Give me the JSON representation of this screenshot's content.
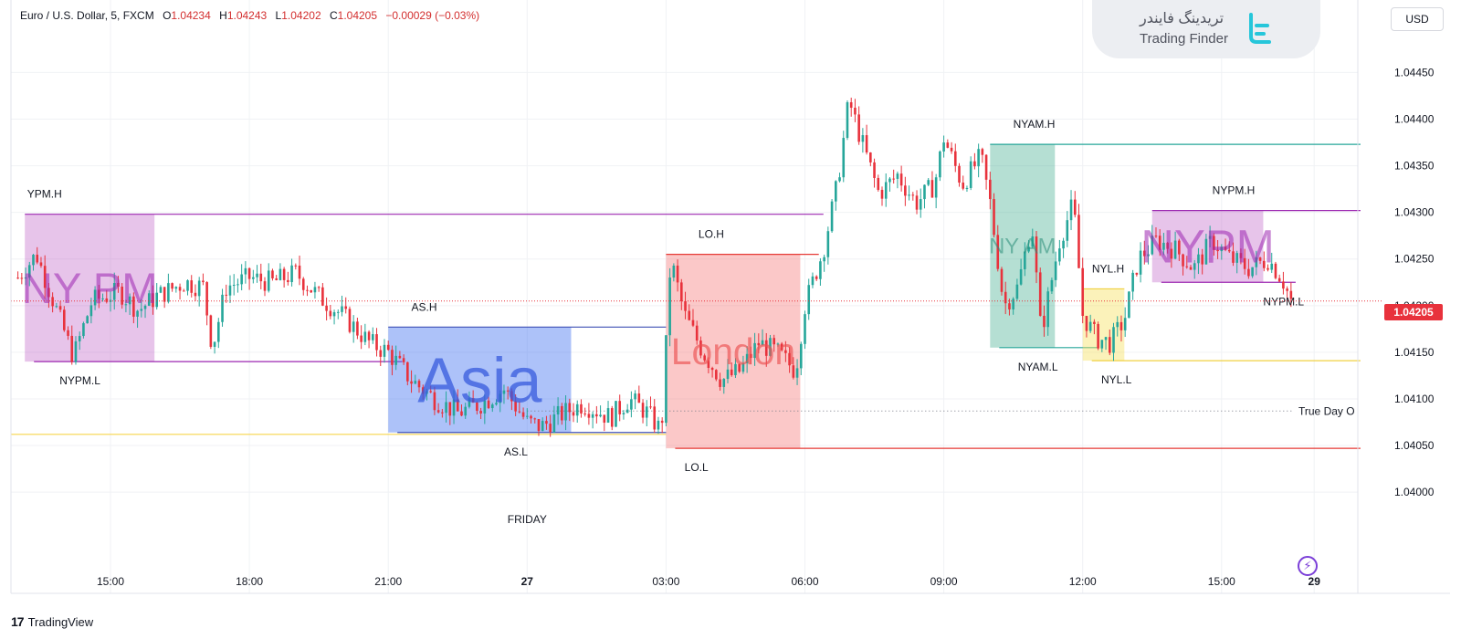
{
  "legend": {
    "symbol": "Euro / U.S. Dollar, 5, FXCM",
    "open_label": "O",
    "open": "1.04234",
    "high_label": "H",
    "high": "1.04243",
    "low_label": "L",
    "low": "1.04202",
    "close_label": "C",
    "close": "1.04205",
    "change": "−0.00029 (−0.03%)"
  },
  "currency": "USD",
  "brand": {
    "persian": "تریدینگ فایندر",
    "english": "Trading Finder"
  },
  "footer": {
    "logo_mark": "17",
    "logo_text": "TradingView"
  },
  "last_price": "1.04205",
  "colors": {
    "up": "#26a69a",
    "down": "#e8323c",
    "grid": "#f0f2f5",
    "axis_text": "#131722"
  },
  "icons": [
    "lightning-icon",
    "tradingview-logo-icon",
    "trading-finder-logo-icon"
  ],
  "chart_data": {
    "type": "candlestick",
    "ylim": [
      1.0396,
      1.0447
    ],
    "y_ticks": [
      "1.04450",
      "1.04400",
      "1.04350",
      "1.04300",
      "1.04250",
      "1.04200",
      "1.04150",
      "1.04100",
      "1.04050",
      "1.04000"
    ],
    "x_ticks": [
      {
        "label": "15:00",
        "t": 15.0,
        "bold": false
      },
      {
        "label": "18:00",
        "t": 18.0,
        "bold": false
      },
      {
        "label": "21:00",
        "t": 21.0,
        "bold": false
      },
      {
        "label": "27",
        "t": 24.0,
        "bold": true
      },
      {
        "label": "03:00",
        "t": 27.0,
        "bold": false
      },
      {
        "label": "06:00",
        "t": 30.0,
        "bold": false
      },
      {
        "label": "09:00",
        "t": 33.0,
        "bold": false
      },
      {
        "label": "12:00",
        "t": 36.0,
        "bold": false
      },
      {
        "label": "15:00",
        "t": 39.0,
        "bold": false
      },
      {
        "label": "29",
        "t": 41.0,
        "bold": true
      }
    ],
    "day_label": {
      "text": "FRIDAY",
      "t": 24.0
    },
    "price_path": [
      [
        13.0,
        1.0423
      ],
      [
        13.4,
        1.04255
      ],
      [
        13.8,
        1.042
      ],
      [
        14.2,
        1.04145
      ],
      [
        14.6,
        1.04205
      ],
      [
        15.2,
        1.04215
      ],
      [
        15.6,
        1.04195
      ],
      [
        16.0,
        1.0421
      ],
      [
        16.6,
        1.04225
      ],
      [
        17.0,
        1.0422
      ],
      [
        17.2,
        1.04155
      ],
      [
        17.5,
        1.0422
      ],
      [
        18.0,
        1.0423
      ],
      [
        18.5,
        1.04225
      ],
      [
        19.0,
        1.04235
      ],
      [
        19.5,
        1.0421
      ],
      [
        20.0,
        1.0419
      ],
      [
        20.6,
        1.0416
      ],
      [
        21.0,
        1.0415
      ],
      [
        21.5,
        1.0412
      ],
      [
        22.0,
        1.041
      ],
      [
        22.5,
        1.04085
      ],
      [
        23.0,
        1.04095
      ],
      [
        23.5,
        1.0411
      ],
      [
        24.0,
        1.04075
      ],
      [
        24.3,
        1.0407
      ],
      [
        24.8,
        1.04085
      ],
      [
        25.2,
        1.04095
      ],
      [
        25.8,
        1.0408
      ],
      [
        26.2,
        1.041
      ],
      [
        26.6,
        1.04085
      ],
      [
        26.9,
        1.04065
      ],
      [
        27.1,
        1.0425
      ],
      [
        27.4,
        1.0419
      ],
      [
        27.8,
        1.0415
      ],
      [
        28.2,
        1.0412
      ],
      [
        28.6,
        1.0413
      ],
      [
        29.0,
        1.0416
      ],
      [
        29.4,
        1.0415
      ],
      [
        29.8,
        1.0413
      ],
      [
        30.0,
        1.042
      ],
      [
        30.4,
        1.0426
      ],
      [
        30.7,
        1.0433
      ],
      [
        30.95,
        1.0442
      ],
      [
        31.2,
        1.0438
      ],
      [
        31.6,
        1.0432
      ],
      [
        32.0,
        1.0434
      ],
      [
        32.4,
        1.0431
      ],
      [
        32.8,
        1.0433
      ],
      [
        33.0,
        1.0438
      ],
      [
        33.4,
        1.0433
      ],
      [
        33.8,
        1.0436
      ],
      [
        34.0,
        1.0431
      ],
      [
        34.3,
        1.042
      ],
      [
        34.6,
        1.0422
      ],
      [
        34.9,
        1.0429
      ],
      [
        35.1,
        1.0417
      ],
      [
        35.5,
        1.0427
      ],
      [
        35.8,
        1.0431
      ],
      [
        36.0,
        1.0419
      ],
      [
        36.3,
        1.04165
      ],
      [
        36.6,
        1.0416
      ],
      [
        36.9,
        1.04185
      ],
      [
        37.2,
        1.0425
      ],
      [
        37.6,
        1.0427
      ],
      [
        38.0,
        1.0426
      ],
      [
        38.4,
        1.0424
      ],
      [
        38.8,
        1.0427
      ],
      [
        39.2,
        1.0425
      ],
      [
        39.6,
        1.0424
      ],
      [
        40.0,
        1.0425
      ],
      [
        40.3,
        1.0423
      ],
      [
        40.5,
        1.04205
      ]
    ],
    "sessions": [
      {
        "name": "NY PM",
        "show_name": true,
        "t0": 13.15,
        "t1": 15.95,
        "high": 1.04298,
        "low": 1.0414,
        "high_line_end": 30.4,
        "low_line_end": 21.3,
        "fill": "rgba(180,70,190,0.32)",
        "line": "#9c27b0",
        "label_color": "rgba(156,39,176,0.55)",
        "high_label": "YPM.H",
        "low_label": "NYPM.L",
        "high_label_t": 13.2,
        "low_label_t": 13.9
      },
      {
        "name": "Asia",
        "show_name": true,
        "t0": 21.0,
        "t1": 24.95,
        "high": 1.04177,
        "low": 1.04064,
        "high_line_end": 27.0,
        "low_line_end": 27.0,
        "fill": "rgba(60,110,240,0.42)",
        "line": "#3f51b5",
        "label_color": "rgba(55,90,220,0.75)",
        "high_label": "AS.H",
        "low_label": "AS.L",
        "high_label_t": 21.5,
        "low_label_t": 23.5
      },
      {
        "name": "London",
        "show_name": true,
        "t0": 27.0,
        "t1": 29.9,
        "high": 1.04255,
        "low": 1.04047,
        "high_line_end": 30.3,
        "low_line_end": 42.0,
        "fill": "rgba(245,110,110,0.38)",
        "line": "#e53935",
        "label_color": "rgba(235,80,80,0.65)",
        "high_label": "LO.H",
        "low_label": "LO.L",
        "high_label_t": 27.7,
        "low_label_t": 27.4
      },
      {
        "name": "NY AM",
        "show_name": true,
        "t0": 34.0,
        "t1": 35.4,
        "high": 1.04373,
        "low": 1.04155,
        "high_line_end": 42.0,
        "low_line_end": 36.35,
        "fill": "rgba(60,170,140,0.38)",
        "line": "#26a69a",
        "label_color": "rgba(40,140,120,0.55)",
        "high_label": "NYAM.H",
        "low_label": "NYAM.L",
        "high_label_t": 34.5,
        "low_label_t": 34.6
      },
      {
        "name": "NYL",
        "show_name": false,
        "t0": 36.0,
        "t1": 36.9,
        "high": 1.04218,
        "low": 1.04141,
        "high_line_end": 36.9,
        "low_line_end": 42.0,
        "fill": "rgba(245,225,90,0.42)",
        "line": "#f0d040",
        "label_color": "rgba(200,180,40,0.6)",
        "high_label": "NYL.H",
        "low_label": "NYL.L",
        "high_label_t": 36.2,
        "low_label_t": 36.4
      },
      {
        "name": "NYPM",
        "show_name": true,
        "t0": 37.5,
        "t1": 39.9,
        "high": 1.04302,
        "low": 1.04225,
        "high_line_end": 42.0,
        "low_line_end": 40.6,
        "fill": "rgba(180,70,190,0.32)",
        "line": "#9c27b0",
        "label_color": "rgba(156,39,176,0.55)",
        "high_label": "NYPM.H",
        "low_label": "NYPM.L",
        "high_label_t": 38.8,
        "low_label_t": 39.9
      }
    ],
    "true_day_open": {
      "label": "True Day O",
      "value": 1.04087,
      "t0": 24.0
    },
    "prev_day_level": {
      "value": 1.04062,
      "t1": 27.0
    }
  }
}
